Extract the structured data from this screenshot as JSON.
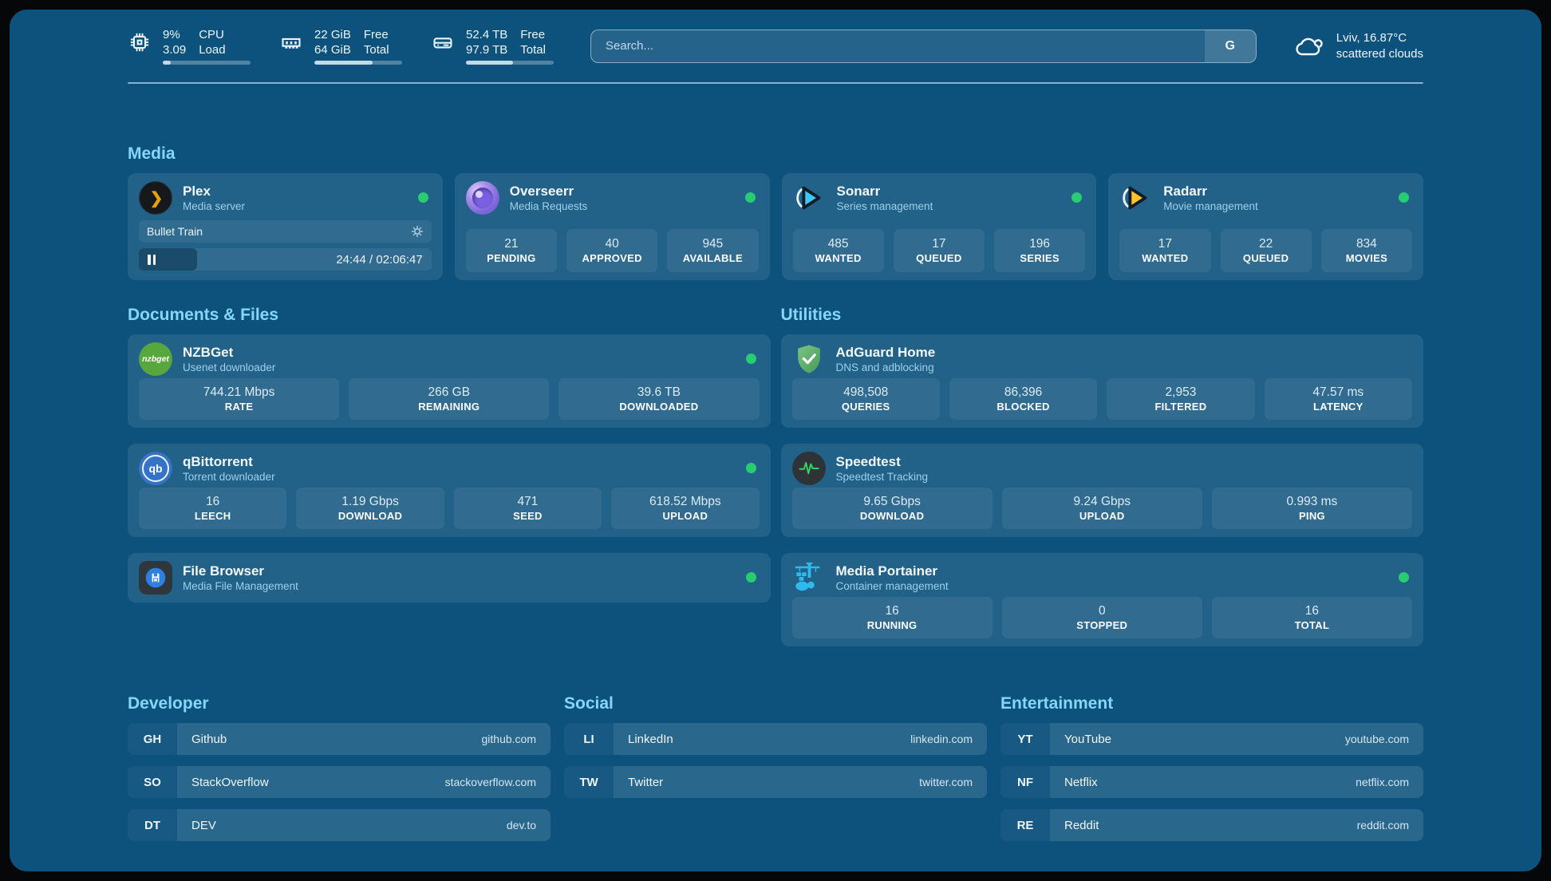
{
  "header": {
    "cpu": {
      "value_top": "9%",
      "value_bottom": "3.09",
      "label_top": "CPU",
      "label_bottom": "Load",
      "progress_pct": 9
    },
    "memory": {
      "value_top": "22 GiB",
      "value_bottom": "64 GiB",
      "label_top": "Free",
      "label_bottom": "Total",
      "progress_pct": 66
    },
    "disk": {
      "value_top": "52.4 TB",
      "value_bottom": "97.9 TB",
      "label_top": "Free",
      "label_bottom": "Total",
      "progress_pct": 54
    },
    "search": {
      "placeholder": "Search...",
      "engine_label": "G"
    },
    "weather": {
      "location_temp": "Lviv, 16.87°C",
      "condition": "scattered clouds"
    }
  },
  "sections": {
    "media": {
      "title": "Media",
      "plex": {
        "title": "Plex",
        "subtitle": "Media server",
        "now_playing": {
          "name": "Bullet Train",
          "time_display": "24:44 / 02:06:47",
          "progress_pct": 20
        }
      },
      "overseerr": {
        "title": "Overseerr",
        "subtitle": "Media Requests",
        "stats": [
          {
            "value": "21",
            "label": "PENDING"
          },
          {
            "value": "40",
            "label": "APPROVED"
          },
          {
            "value": "945",
            "label": "AVAILABLE"
          }
        ]
      },
      "sonarr": {
        "title": "Sonarr",
        "subtitle": "Series management",
        "stats": [
          {
            "value": "485",
            "label": "WANTED"
          },
          {
            "value": "17",
            "label": "QUEUED"
          },
          {
            "value": "196",
            "label": "SERIES"
          }
        ]
      },
      "radarr": {
        "title": "Radarr",
        "subtitle": "Movie management",
        "stats": [
          {
            "value": "17",
            "label": "WANTED"
          },
          {
            "value": "22",
            "label": "QUEUED"
          },
          {
            "value": "834",
            "label": "MOVIES"
          }
        ]
      }
    },
    "documents": {
      "title": "Documents & Files",
      "nzbget": {
        "title": "NZBGet",
        "subtitle": "Usenet downloader",
        "icon_text": "nzbget",
        "stats": [
          {
            "value": "744.21 Mbps",
            "label": "RATE"
          },
          {
            "value": "266 GB",
            "label": "REMAINING"
          },
          {
            "value": "39.6 TB",
            "label": "DOWNLOADED"
          }
        ]
      },
      "qbittorrent": {
        "title": "qBittorrent",
        "subtitle": "Torrent downloader",
        "icon_text": "qb",
        "stats": [
          {
            "value": "16",
            "label": "LEECH"
          },
          {
            "value": "1.19 Gbps",
            "label": "DOWNLOAD"
          },
          {
            "value": "471",
            "label": "SEED"
          },
          {
            "value": "618.52 Mbps",
            "label": "UPLOAD"
          }
        ]
      },
      "filebrowser": {
        "title": "File Browser",
        "subtitle": "Media File Management"
      }
    },
    "utilities": {
      "title": "Utilities",
      "adguard": {
        "title": "AdGuard Home",
        "subtitle": "DNS and adblocking",
        "stats": [
          {
            "value": "498,508",
            "label": "QUERIES"
          },
          {
            "value": "86,396",
            "label": "BLOCKED"
          },
          {
            "value": "2,953",
            "label": "FILTERED"
          },
          {
            "value": "47.57 ms",
            "label": "LATENCY"
          }
        ]
      },
      "speedtest": {
        "title": "Speedtest",
        "subtitle": "Speedtest Tracking",
        "stats": [
          {
            "value": "9.65 Gbps",
            "label": "DOWNLOAD"
          },
          {
            "value": "9.24 Gbps",
            "label": "UPLOAD"
          },
          {
            "value": "0.993 ms",
            "label": "PING"
          }
        ]
      },
      "portainer": {
        "title": "Media Portainer",
        "subtitle": "Container management",
        "stats": [
          {
            "value": "16",
            "label": "RUNNING"
          },
          {
            "value": "0",
            "label": "STOPPED"
          },
          {
            "value": "16",
            "label": "TOTAL"
          }
        ]
      }
    },
    "bookmarks": {
      "developer": {
        "title": "Developer",
        "links": [
          {
            "abbr": "GH",
            "name": "Github",
            "domain": "github.com"
          },
          {
            "abbr": "SO",
            "name": "StackOverflow",
            "domain": "stackoverflow.com"
          },
          {
            "abbr": "DT",
            "name": "DEV",
            "domain": "dev.to"
          }
        ]
      },
      "social": {
        "title": "Social",
        "links": [
          {
            "abbr": "LI",
            "name": "LinkedIn",
            "domain": "linkedin.com"
          },
          {
            "abbr": "TW",
            "name": "Twitter",
            "domain": "twitter.com"
          }
        ]
      },
      "entertainment": {
        "title": "Entertainment",
        "links": [
          {
            "abbr": "YT",
            "name": "YouTube",
            "domain": "youtube.com"
          },
          {
            "abbr": "NF",
            "name": "Netflix",
            "domain": "netflix.com"
          },
          {
            "abbr": "RE",
            "name": "Reddit",
            "domain": "reddit.com"
          }
        ]
      }
    }
  },
  "colors": {
    "background": "#0d527d",
    "accent_heading": "#85d6f8",
    "status_online": "#27ce71",
    "plex_orange": "#e5a00d",
    "sonarr_blue": "#3ec6f4",
    "radarr_yellow": "#ffc230"
  }
}
